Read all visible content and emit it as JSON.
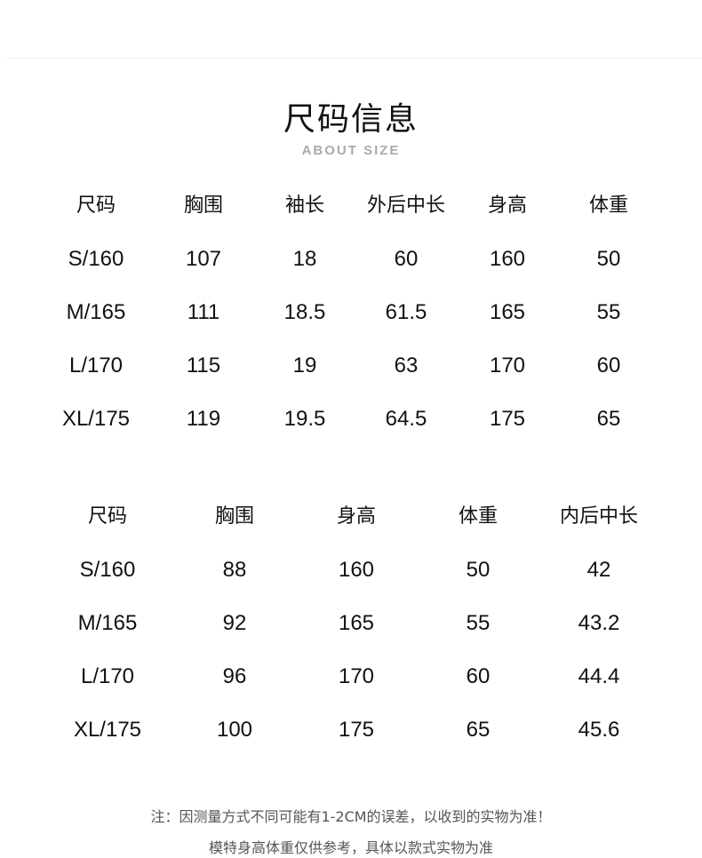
{
  "title": "尺码信息",
  "subtitle": "ABOUT SIZE",
  "table1": {
    "headers": [
      "尺码",
      "胸围",
      "袖长",
      "外后中长",
      "身高",
      "体重"
    ],
    "rows": [
      [
        "S/160",
        "107",
        "18",
        "60",
        "160",
        "50"
      ],
      [
        "M/165",
        "111",
        "18.5",
        "61.5",
        "165",
        "55"
      ],
      [
        "L/170",
        "115",
        "19",
        "63",
        "170",
        "60"
      ],
      [
        "XL/175",
        "119",
        "19.5",
        "64.5",
        "175",
        "65"
      ]
    ]
  },
  "table2": {
    "headers": [
      "尺码",
      "胸围",
      "身高",
      "体重",
      "内后中长"
    ],
    "rows": [
      [
        "S/160",
        "88",
        "160",
        "50",
        "42"
      ],
      [
        "M/165",
        "92",
        "165",
        "55",
        "43.2"
      ],
      [
        "L/170",
        "96",
        "170",
        "60",
        "44.4"
      ],
      [
        "XL/175",
        "100",
        "175",
        "65",
        "45.6"
      ]
    ]
  },
  "notes": [
    "注：因测量方式不同可能有1-2CM的误差，以收到的实物为准！",
    "模特身高体重仅供参考，具体以款式实物为准"
  ]
}
